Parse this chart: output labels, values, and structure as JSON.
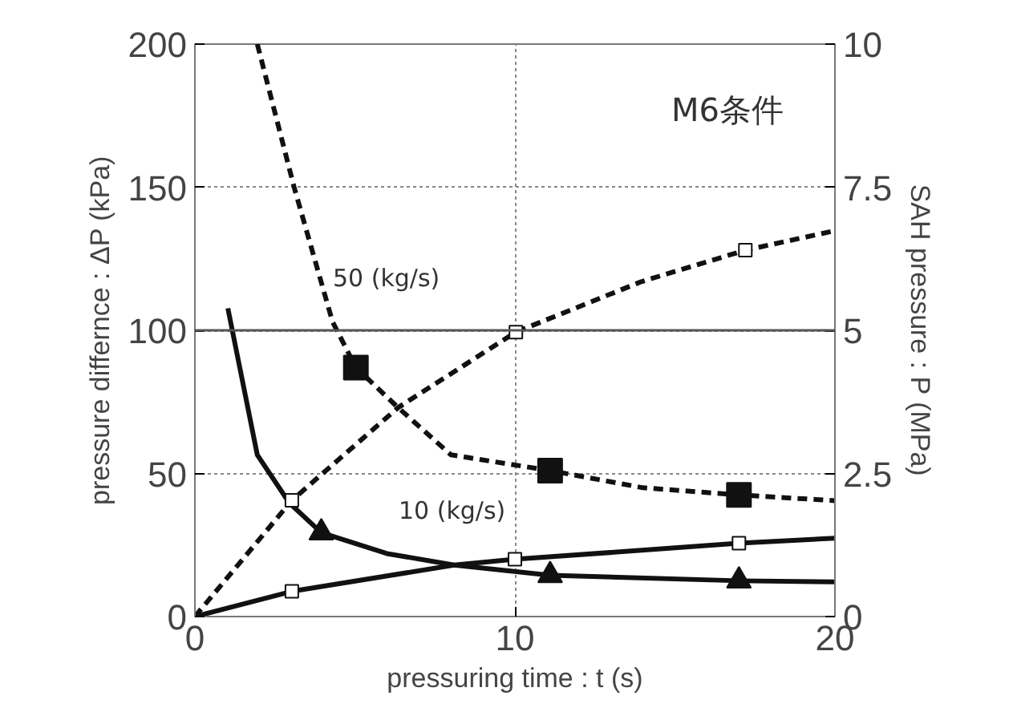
{
  "chart_data": {
    "type": "line",
    "xlabel": "pressuring time : t (s)",
    "ylabel": "pressure differnce : ΔP (kPa)",
    "y2label": "SAH pressure : P (MPa)",
    "xlim": [
      0,
      20
    ],
    "xticks": [
      0,
      10,
      20
    ],
    "ylim": [
      0,
      200
    ],
    "yticks": [
      0,
      50,
      100,
      150,
      200
    ],
    "y2lim": [
      0,
      10
    ],
    "y2ticks": [
      0,
      2.5,
      5,
      7.5,
      10
    ],
    "grid": true,
    "ref_lines": [
      {
        "axis": "y",
        "value": 100,
        "color": "#555555",
        "line_style": "solid"
      }
    ],
    "annotations": [
      "50 (kg/s)",
      "10 (kg/s)",
      "M6条件"
    ],
    "series": [
      {
        "color": "#111111",
        "line_style": "dashed",
        "marker": "none",
        "x": [
          1.95,
          3.1,
          4.3,
          5.03,
          6.35,
          8.0,
          11.1,
          14.0,
          17.0,
          20.0
        ],
        "values": [
          200,
          150,
          103,
          87,
          73,
          56.5,
          51,
          45,
          42.5,
          40.5
        ]
      },
      {
        "type": "scatter",
        "color": "#111111",
        "marker": "square",
        "x": [
          5.03,
          11.1,
          17.0
        ],
        "values": [
          87,
          51,
          42.5
        ]
      },
      {
        "color": "#111111",
        "line_style": "solid",
        "marker": "none",
        "x": [
          1.03,
          1.95,
          2.95,
          3.95,
          6.0,
          8.1,
          11.1,
          17.0,
          20.0
        ],
        "values": [
          107.7,
          56.5,
          39.7,
          29.3,
          22,
          18,
          14.4,
          12.5,
          12.1
        ]
      },
      {
        "type": "scatter",
        "color": "#111111",
        "marker": "triangle",
        "x": [
          3.95,
          11.1,
          17.0
        ],
        "values": [
          29.3,
          14.4,
          12.5
        ]
      },
      {
        "axis": "y2",
        "color": "#111111",
        "line_style": "dashed",
        "marker": "none",
        "x": [
          0,
          3.03,
          6.35,
          10.03,
          13.95,
          17.2,
          20.0
        ],
        "values": [
          0,
          2.03,
          3.65,
          4.97,
          5.85,
          6.4,
          6.74
        ]
      },
      {
        "type": "scatter",
        "axis": "y2",
        "color": "#111111",
        "marker": "square_open",
        "x": [
          3.03,
          10.03,
          17.2
        ],
        "values": [
          2.03,
          4.97,
          6.4
        ]
      },
      {
        "axis": "y2",
        "color": "#111111",
        "line_style": "solid",
        "marker": "none",
        "x": [
          0,
          3.03,
          8.1,
          10.0,
          17.0,
          20.0
        ],
        "values": [
          0,
          0.44,
          0.9,
          1.0,
          1.28,
          1.37
        ]
      },
      {
        "type": "scatter",
        "axis": "y2",
        "color": "#111111",
        "marker": "square_open",
        "x": [
          3.03,
          10.0,
          17.0
        ],
        "values": [
          0.44,
          1.0,
          1.28
        ]
      }
    ]
  }
}
